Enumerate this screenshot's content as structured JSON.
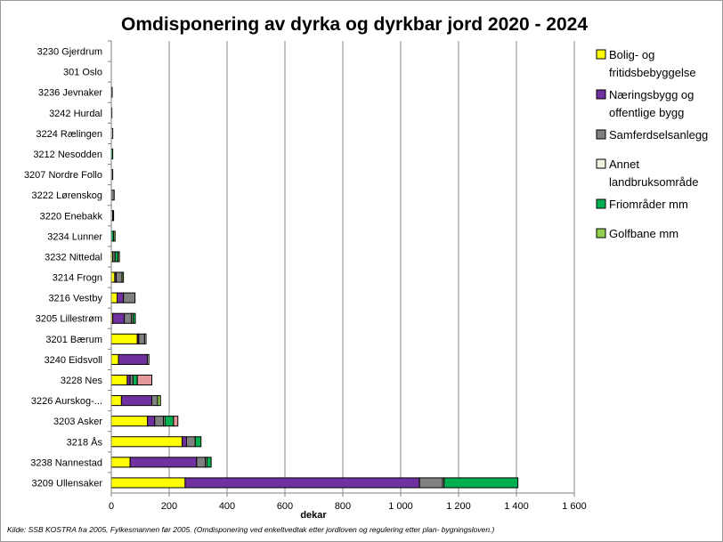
{
  "chart_data": {
    "type": "bar",
    "orientation": "horizontal",
    "stacked": true,
    "title": "Omdisponering av dyrka og dyrkbar jord 2020 - 2024",
    "xlabel": "dekar",
    "xlim": [
      0,
      1600
    ],
    "xticks": [
      0,
      200,
      400,
      600,
      800,
      1000,
      1200,
      1400,
      1600
    ],
    "xtick_labels": [
      "0",
      "200",
      "400",
      "600",
      "800",
      "1 000",
      "1 200",
      "1 400",
      "1 600"
    ],
    "grid": "vertical",
    "legend_position": "right",
    "source": "Kilde: SSB KOSTRA fra 2005, Fylkesmannen før 2005. (Omdisponering ved enkeltvedtak etter jordloven og regulering etter plan- bygningsloven.)",
    "categories": [
      "3230 Gjerdrum",
      "301 Oslo",
      "3236 Jevnaker",
      "3242 Hurdal",
      "3224 Rælingen",
      "3212 Nesodden",
      "3207 Nordre Follo",
      "3222 Lørenskog",
      "3220 Enebakk",
      "3234 Lunner",
      "3232 Nittedal",
      "3214 Frogn",
      "3216 Vestby",
      "3205 Lillestrøm",
      "3201 Bærum",
      "3240 Eidsvoll",
      "3228 Nes",
      "3226 Aurskog-...",
      "3203 Asker",
      "3218 Ås",
      "3238 Nannestad",
      "3209 Ullensaker"
    ],
    "series": [
      {
        "name": "Bolig- og fritidsbebyggelse",
        "color": "#FFFF00",
        "values": [
          0,
          0,
          0,
          0,
          0,
          0,
          0,
          0,
          0,
          0,
          5,
          12,
          20,
          5,
          90,
          25,
          55,
          35,
          125,
          245,
          65,
          255
        ]
      },
      {
        "name": "Næringsbygg og offentlige bygg",
        "color": "#7030A0",
        "values": [
          0,
          0,
          3,
          2,
          0,
          0,
          0,
          0,
          0,
          0,
          0,
          5,
          22,
          40,
          5,
          100,
          10,
          105,
          25,
          15,
          230,
          810
        ]
      },
      {
        "name": "Samferdselsanlegg",
        "color": "#808080",
        "values": [
          0,
          0,
          0,
          0,
          0,
          0,
          5,
          10,
          0,
          0,
          8,
          20,
          40,
          25,
          20,
          0,
          10,
          20,
          30,
          30,
          30,
          80
        ]
      },
      {
        "name": "Annet landbruksområde",
        "color": "#EAF1DD",
        "values": [
          0,
          0,
          0,
          0,
          5,
          0,
          0,
          0,
          5,
          0,
          0,
          0,
          0,
          5,
          5,
          5,
          0,
          0,
          5,
          0,
          5,
          5
        ]
      },
      {
        "name": "Friområder mm",
        "color": "#00B050",
        "values": [
          0,
          0,
          0,
          0,
          0,
          5,
          0,
          0,
          3,
          8,
          10,
          0,
          0,
          8,
          0,
          0,
          15,
          0,
          30,
          20,
          15,
          255
        ]
      },
      {
        "name": "Golfbane mm",
        "color": "#92D050",
        "values": [
          0,
          0,
          0,
          0,
          0,
          0,
          0,
          0,
          0,
          5,
          5,
          5,
          0,
          0,
          0,
          0,
          0,
          10,
          0,
          0,
          0,
          0
        ]
      },
      {
        "color": "#E6979B",
        "values": [
          0,
          0,
          0,
          0,
          0,
          0,
          0,
          0,
          0,
          0,
          0,
          0,
          0,
          0,
          0,
          0,
          50,
          0,
          15,
          0,
          0,
          0
        ]
      }
    ],
    "legend": [
      {
        "label_lines": [
          "Bolig- og",
          "fritidsbebyggelse"
        ],
        "color": "#FFFF00"
      },
      {
        "label_lines": [
          "Næringsbygg og",
          "offentlige bygg"
        ],
        "color": "#7030A0"
      },
      {
        "label_lines": [
          "Samferdselsanlegg"
        ],
        "color": "#808080"
      },
      {
        "label_lines": [
          "Annet",
          "landbruksområde"
        ],
        "color": "#EAF1DD"
      },
      {
        "label_lines": [
          "Friområder mm"
        ],
        "color": "#00B050"
      },
      {
        "label_lines": [
          "Golfbane mm"
        ],
        "color": "#92D050"
      }
    ]
  }
}
